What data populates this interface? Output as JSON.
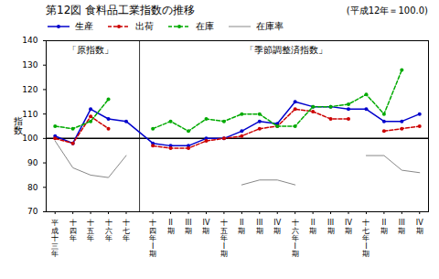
{
  "chart_data": {
    "type": "line",
    "title": "第12図  食料品工業指数の推移",
    "subtitle": "(平成12年＝100.0)",
    "ylabel": "指数",
    "categories": [
      "平成十三年",
      "十四年",
      "十五年",
      "十六年",
      "十七年",
      "十四年I期",
      "II期",
      "III期",
      "IV期",
      "十五年I期",
      "II期",
      "III期",
      "IV期",
      "十六年I期",
      "II期",
      "III期",
      "IV期",
      "十七年I期",
      "II期",
      "III期",
      "IV期"
    ],
    "series": [
      {
        "name": "生産",
        "color": "#0000cc",
        "line_style": "solid",
        "marker": "circle",
        "values": [
          101,
          98,
          112,
          108,
          107,
          98,
          97,
          97,
          100,
          100,
          103,
          107,
          106,
          115,
          113,
          113,
          112,
          112,
          107,
          107,
          110
        ]
      },
      {
        "name": "出荷",
        "color": "#cc0000",
        "line_style": "dashed",
        "marker": "circle",
        "values": [
          100,
          98,
          109,
          104,
          null,
          97,
          96,
          96,
          99,
          100,
          101,
          104,
          105,
          112,
          111,
          108,
          108,
          null,
          103,
          104,
          105
        ]
      },
      {
        "name": "在庫",
        "color": "#00aa00",
        "line_style": "dashed",
        "marker": "circle",
        "values": [
          105,
          104,
          107,
          116,
          null,
          104,
          107,
          103,
          108,
          107,
          110,
          110,
          105,
          105,
          113,
          113,
          114,
          118,
          110,
          128,
          null
        ]
      },
      {
        "name": "在庫率",
        "color": "#888888",
        "line_style": "solid",
        "marker": "none",
        "values": [
          99,
          88,
          85,
          84,
          93,
          null,
          null,
          null,
          null,
          null,
          81,
          83,
          83,
          81,
          null,
          null,
          null,
          93,
          93,
          87,
          86
        ]
      }
    ],
    "annotations": [
      "「原指数」",
      "「季節調整済指数」"
    ],
    "reference_line": 100,
    "ylim": [
      70,
      140
    ],
    "yticks": [
      70,
      80,
      90,
      100,
      110,
      120,
      130,
      140
    ],
    "grid": false,
    "legend": "top"
  }
}
